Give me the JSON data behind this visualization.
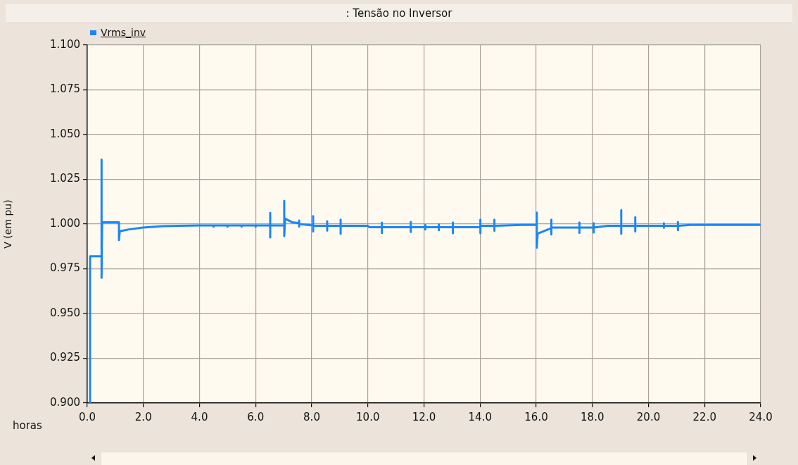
{
  "chart_data": {
    "type": "line",
    "title": ": Tensão no Inversor",
    "xlabel": "horas",
    "ylabel": "V (em pu)",
    "x": [
      0.1,
      0.1,
      0.51,
      0.51,
      0.51,
      0.53,
      1.13,
      1.13,
      1.16,
      1.48,
      1.98,
      2.7,
      4.0,
      4.5,
      4.5,
      4.5,
      5.0,
      5.0,
      5.0,
      5.5,
      5.5,
      5.5,
      6.0,
      6.0,
      6.0,
      6.52,
      6.52,
      6.52,
      6.52,
      7.02,
      7.02,
      7.02,
      7.05,
      7.3,
      7.55,
      7.55,
      7.55,
      7.55,
      8.05,
      8.05,
      8.05,
      8.05,
      8.55,
      8.55,
      8.55,
      8.55,
      9.03,
      9.03,
      9.03,
      9.03,
      10.0,
      10.05,
      10.5,
      10.5,
      10.5,
      10.5,
      11.53,
      11.53,
      11.53,
      11.53,
      12.05,
      12.05,
      12.05,
      12.05,
      12.53,
      12.53,
      12.53,
      12.53,
      13.03,
      13.03,
      13.03,
      13.03,
      14.01,
      14.01,
      14.01,
      14.01,
      14.51,
      14.51,
      14.51,
      14.51,
      15.5,
      16.02,
      16.02,
      16.02,
      16.05,
      16.5,
      16.54,
      16.54,
      16.54,
      16.54,
      17.54,
      17.54,
      17.54,
      17.54,
      18.05,
      18.05,
      18.05,
      18.05,
      18.55,
      19.03,
      19.03,
      19.03,
      19.03,
      19.53,
      19.53,
      19.53,
      19.53,
      20.55,
      20.55,
      20.55,
      20.55,
      21.05,
      21.05,
      21.05,
      21.05,
      21.5,
      24.0
    ],
    "series": [
      {
        "name": "Vrms_inv",
        "color": "#1a86f7",
        "values": [
          0.9,
          0.982,
          0.982,
          1.036,
          0.97,
          1.001,
          1.001,
          0.991,
          0.996,
          0.997,
          0.998,
          0.9988,
          0.9992,
          0.9992,
          0.9985,
          0.9992,
          0.9992,
          0.9985,
          0.9992,
          0.9992,
          0.9985,
          0.9992,
          0.9992,
          0.9985,
          0.9992,
          0.9992,
          1.0063,
          0.9925,
          0.9992,
          0.9992,
          1.013,
          0.9933,
          1.003,
          1.001,
          1.0005,
          1.002,
          0.9986,
          1.0,
          0.9992,
          1.0044,
          0.9959,
          0.999,
          0.999,
          1.0016,
          0.9964,
          0.999,
          0.999,
          1.0025,
          0.9946,
          0.999,
          0.999,
          0.9982,
          0.9982,
          1.0008,
          0.995,
          0.9982,
          0.9982,
          1.0012,
          0.9956,
          0.9982,
          0.9982,
          0.9995,
          0.9969,
          0.9982,
          0.9982,
          0.9999,
          0.9966,
          0.9982,
          0.9982,
          1.0009,
          0.9949,
          0.9982,
          0.9982,
          1.0025,
          0.9949,
          0.999,
          0.999,
          1.0025,
          0.9963,
          0.999,
          0.9995,
          0.9995,
          1.0064,
          0.9868,
          0.9946,
          0.9975,
          0.9975,
          1.0025,
          0.9942,
          0.998,
          0.998,
          1.0009,
          0.9951,
          0.998,
          0.998,
          1.0005,
          0.9953,
          0.998,
          0.999,
          0.999,
          1.0078,
          0.9946,
          0.999,
          0.999,
          1.0038,
          0.9959,
          0.999,
          0.999,
          1.0005,
          0.9979,
          0.999,
          0.999,
          1.0012,
          0.9966,
          0.999,
          0.9995,
          0.9995
        ]
      }
    ],
    "xlim": [
      0,
      24
    ],
    "xticks": [
      {
        "value": 0,
        "label": "0.0"
      },
      {
        "value": 2,
        "label": "2.0"
      },
      {
        "value": 4,
        "label": "4.0"
      },
      {
        "value": 6,
        "label": "6.0"
      },
      {
        "value": 8,
        "label": "8.0"
      },
      {
        "value": 10,
        "label": "10.0"
      },
      {
        "value": 12,
        "label": "12.0"
      },
      {
        "value": 14,
        "label": "14.0"
      },
      {
        "value": 16,
        "label": "16.0"
      },
      {
        "value": 18,
        "label": "18.0"
      },
      {
        "value": 20,
        "label": "20.0"
      },
      {
        "value": 22,
        "label": "22.0"
      },
      {
        "value": 24,
        "label": "24.0"
      }
    ],
    "ylim": [
      0.9,
      1.1
    ],
    "yticks": [
      {
        "value": 0.9,
        "label": "0.900"
      },
      {
        "value": 0.925,
        "label": "0.925"
      },
      {
        "value": 0.95,
        "label": "0.950"
      },
      {
        "value": 0.975,
        "label": "0.975"
      },
      {
        "value": 1.0,
        "label": "1.000"
      },
      {
        "value": 1.025,
        "label": "1.025"
      },
      {
        "value": 1.05,
        "label": "1.050"
      },
      {
        "value": 1.075,
        "label": "1.075"
      },
      {
        "value": 1.1,
        "label": "1.100"
      }
    ],
    "grid": true,
    "legend": "top left",
    "marker": "none",
    "line_style": "solid"
  }
}
